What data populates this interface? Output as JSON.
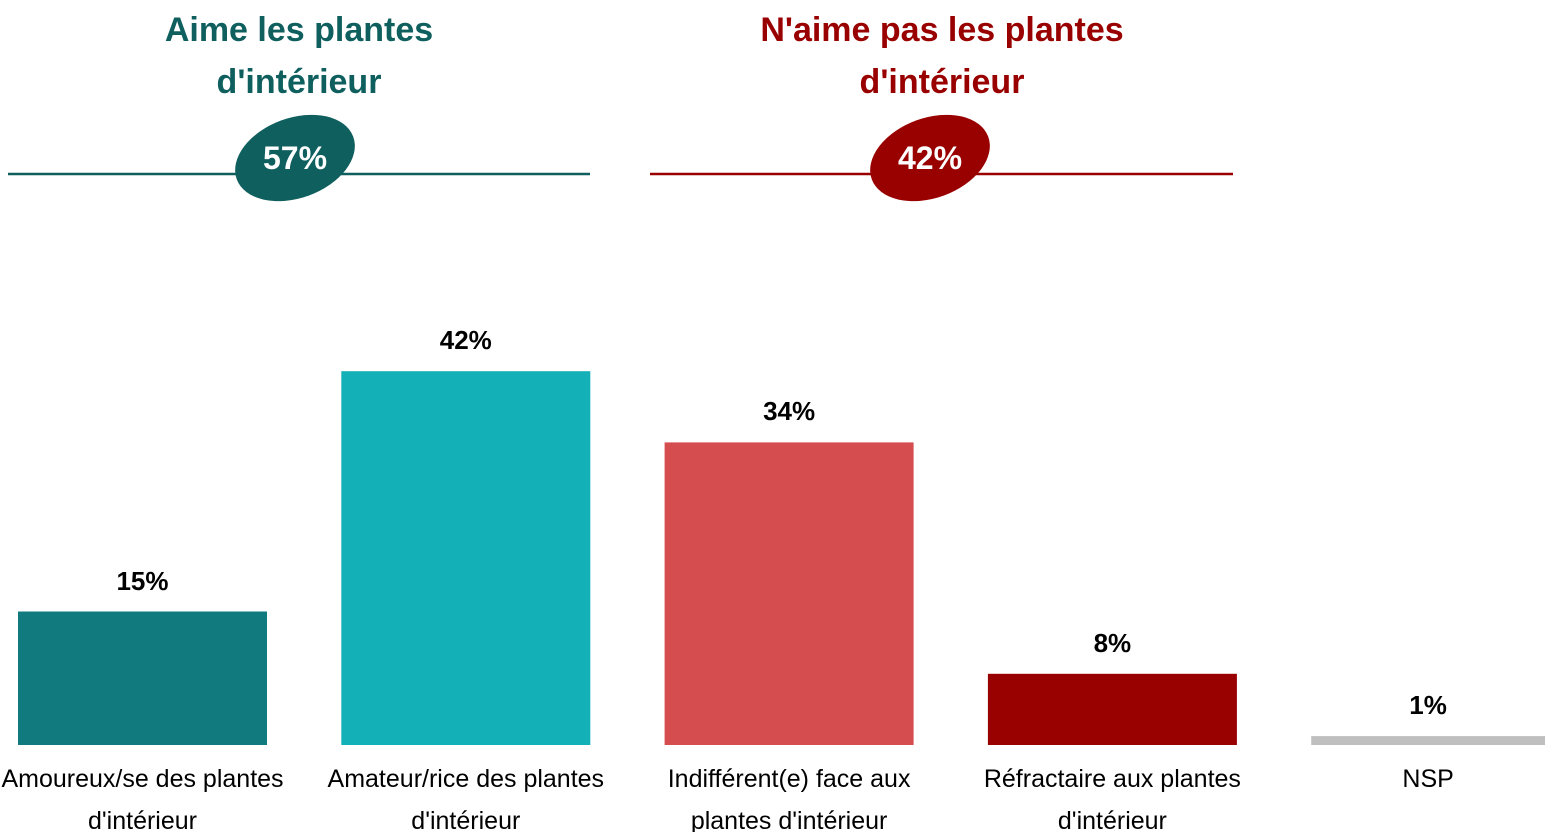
{
  "chart_data": {
    "type": "bar",
    "groups": {
      "titles": [
        "Aime les plantes d'intérieur",
        "N'aime pas les plantes d'intérieur"
      ],
      "values": [
        57,
        42
      ],
      "value_labels": [
        "57%",
        "42%"
      ],
      "colors": [
        "#0e5f5e",
        "#990000"
      ]
    },
    "categories": [
      "Amoureux/se des plantes d'intérieur",
      "Amateur/rice des plantes d'intérieur",
      "Indifférent(e) face aux plantes d'intérieur",
      "Réfractaire aux plantes d'intérieur",
      "NSP"
    ],
    "values": [
      15,
      42,
      34,
      8,
      1
    ],
    "value_labels": [
      "15%",
      "42%",
      "34%",
      "8%",
      "1%"
    ],
    "colors": [
      "#107a7e",
      "#13b0b8",
      "#d64d50",
      "#990000",
      "#bfbfbf"
    ]
  }
}
